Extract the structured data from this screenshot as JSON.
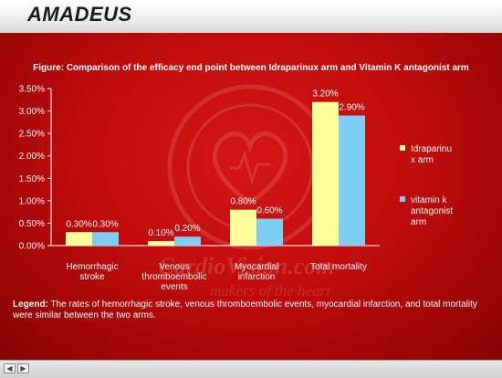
{
  "header": {
    "title": "AMADEUS"
  },
  "figure_title": "Figure: Comparison of the efficacy end point between Idraparinux arm and Vitamin K antagonist arm",
  "legend_note": {
    "label": "Legend:",
    "text": "The rates of hemorrhagic stroke, venous thromboembolic events, myocardial infarction, and total mortality were similar between the two arms."
  },
  "watermark": {
    "text": "CardioVision.com",
    "subtext": "makers of the heart"
  },
  "footer": {
    "prev_icon": "arrow-left-icon",
    "next_icon": "arrow-right-icon"
  },
  "colors": {
    "idraparinux": "#ffff99",
    "vka": "#7ecdf2",
    "background": "#c10c0c",
    "text": "#ffffff"
  },
  "chart_data": {
    "type": "bar",
    "categories": [
      [
        "Hemorrhagic",
        "stroke"
      ],
      [
        "Venous",
        "thromboembolic",
        "events"
      ],
      [
        "Myocardial",
        "infarction"
      ],
      [
        "Total mortality"
      ]
    ],
    "series": [
      {
        "name": "Idraparinux arm",
        "legend_lines": [
          "Idraparinu",
          "x arm"
        ],
        "values": [
          0.3,
          0.1,
          0.8,
          3.2
        ],
        "labels": [
          "0.30%",
          "0.10%",
          "0.80%",
          "3.20%"
        ]
      },
      {
        "name": "vitamin k antagonist arm",
        "legend_lines": [
          "vitamin k",
          "antagonist",
          "arm"
        ],
        "values": [
          0.3,
          0.2,
          0.6,
          2.9
        ],
        "labels": [
          "0.30%",
          "0.20%",
          "0.60%",
          "2.90%"
        ]
      }
    ],
    "ylim": [
      0,
      3.5
    ],
    "yticks": [
      "0.00%",
      "0.50%",
      "1.00%",
      "1.50%",
      "2.00%",
      "2.50%",
      "3.00%",
      "3.50%"
    ],
    "grid": false,
    "legend_position": "right"
  }
}
